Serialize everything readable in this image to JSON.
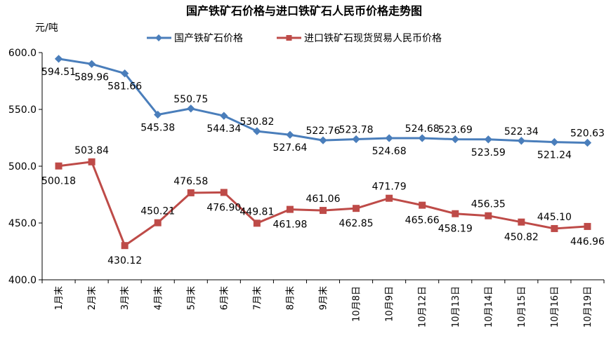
{
  "chart_data": {
    "type": "line",
    "title": "国产铁矿石价格与进口铁矿石人民币价格走势图",
    "unit_label": "元/吨",
    "categories": [
      "1月末",
      "2月末",
      "3月末",
      "4月末",
      "5月末",
      "6月末",
      "7月末",
      "8月末",
      "9月末",
      "10月8日",
      "10月9日",
      "10月12日",
      "10月13日",
      "10月14日",
      "10月15日",
      "10月16日",
      "10月19日"
    ],
    "ylim": [
      400,
      600
    ],
    "yticks": [
      "400.0",
      "450.0",
      "500.0",
      "550.0",
      "600.0"
    ],
    "legend_position": "top",
    "series": [
      {
        "name": "国产铁矿石价格",
        "color": "#4a7ebb",
        "marker": "diamond",
        "values": [
          594.51,
          589.96,
          581.66,
          545.38,
          550.75,
          544.34,
          530.82,
          527.64,
          522.76,
          523.78,
          524.68,
          524.68,
          523.69,
          523.59,
          522.34,
          521.24,
          520.63
        ],
        "labels": [
          "594.51",
          "589.96",
          "581.66",
          "545.38",
          "550.75",
          "544.34",
          "530.82",
          "527.64",
          "522.76",
          "523.78",
          "524.68",
          "524.68",
          "523.69",
          "523.59",
          "522.34",
          "521.24",
          "520.63"
        ]
      },
      {
        "name": "进口铁矿石现货贸易人民币价格",
        "color": "#be4b48",
        "marker": "square",
        "values": [
          500.18,
          503.84,
          430.12,
          450.21,
          476.58,
          476.9,
          449.81,
          461.98,
          461.06,
          462.85,
          471.79,
          465.66,
          458.19,
          456.35,
          450.82,
          445.1,
          446.96
        ],
        "labels": [
          "500.18",
          "503.84",
          "430.12",
          "450.21",
          "476.58",
          "476.90",
          "449.81",
          "461.98",
          "461.06",
          "462.85",
          "471.79",
          "465.66",
          "458.19",
          "456.35",
          "450.82",
          "445.10",
          "446.96"
        ]
      }
    ]
  }
}
